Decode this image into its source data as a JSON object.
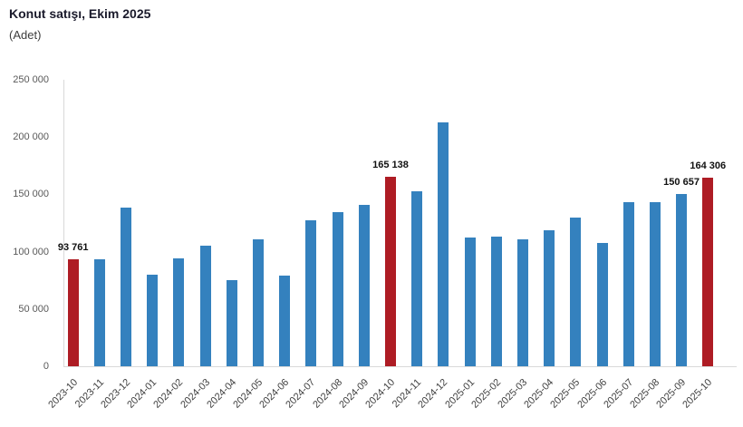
{
  "header": {
    "title": "Konut satışı, Ekim 2025",
    "subtitle": "(Adet)"
  },
  "chart_data": {
    "type": "bar",
    "title": "Konut satışı, Ekim 2025",
    "ylabel": "Adet",
    "xlabel": "",
    "grid": false,
    "legend_position": "none",
    "ylim": [
      0,
      250000
    ],
    "yticks": [
      0,
      50000,
      100000,
      150000,
      200000,
      250000
    ],
    "ytick_labels": [
      "0",
      "50 000",
      "100 000",
      "150 000",
      "200 000",
      "250 000"
    ],
    "categories": [
      "2023-10",
      "2023-11",
      "2023-12",
      "2024-01",
      "2024-02",
      "2024-03",
      "2024-04",
      "2024-05",
      "2024-06",
      "2024-07",
      "2024-08",
      "2024-09",
      "2024-10",
      "2024-11",
      "2024-12",
      "2025-01",
      "2025-02",
      "2025-03",
      "2025-04",
      "2025-05",
      "2025-06",
      "2025-07",
      "2025-08",
      "2025-09",
      "2025-10"
    ],
    "values": [
      93761,
      93178,
      138577,
      80308,
      93902,
      105394,
      75569,
      110588,
      79313,
      127088,
      134155,
      140919,
      165138,
      153014,
      212637,
      112173,
      112818,
      110795,
      118359,
      130025,
      107723,
      142858,
      143319,
      150657,
      164306
    ],
    "highlighted_categories": [
      "2023-10",
      "2024-10",
      "2025-10"
    ],
    "value_labels": [
      {
        "category": "2023-10",
        "text": "93 761"
      },
      {
        "category": "2024-10",
        "text": "165 138"
      },
      {
        "category": "2025-09",
        "text": "150 657"
      },
      {
        "category": "2025-10",
        "text": "164 306"
      }
    ],
    "colors": {
      "bar": "#3481be",
      "highlight": "#ae1c24",
      "axis_line": "#d9d9d9"
    }
  }
}
